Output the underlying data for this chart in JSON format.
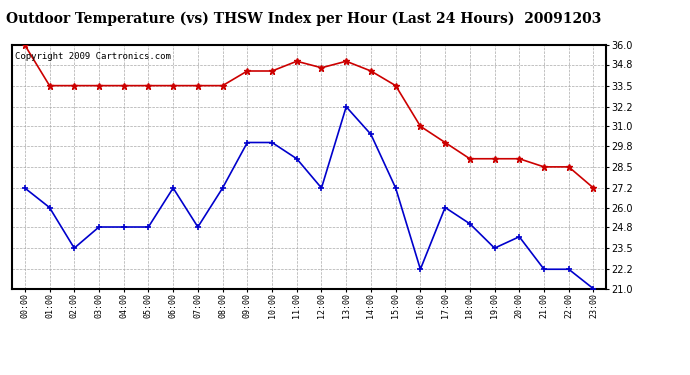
{
  "title": "Outdoor Temperature (vs) THSW Index per Hour (Last 24 Hours)  20091203",
  "copyright": "Copyright 2009 Cartronics.com",
  "hours": [
    "00:00",
    "01:00",
    "02:00",
    "03:00",
    "04:00",
    "05:00",
    "06:00",
    "07:00",
    "08:00",
    "09:00",
    "10:00",
    "11:00",
    "12:00",
    "13:00",
    "14:00",
    "15:00",
    "16:00",
    "17:00",
    "18:00",
    "19:00",
    "20:00",
    "21:00",
    "22:00",
    "23:00"
  ],
  "red_data": [
    36.0,
    33.5,
    33.5,
    33.5,
    33.5,
    33.5,
    33.5,
    33.5,
    33.5,
    34.4,
    34.4,
    35.0,
    34.6,
    35.0,
    34.4,
    33.5,
    31.0,
    30.0,
    29.0,
    29.0,
    29.0,
    28.5,
    28.5,
    27.2
  ],
  "blue_data": [
    27.2,
    26.0,
    23.5,
    24.8,
    24.8,
    24.8,
    27.2,
    24.8,
    27.2,
    30.0,
    30.0,
    29.0,
    27.2,
    32.2,
    30.5,
    27.2,
    22.2,
    26.0,
    25.0,
    23.5,
    24.2,
    22.2,
    22.2,
    21.0
  ],
  "ylim": [
    21.0,
    36.0
  ],
  "yticks": [
    21.0,
    22.2,
    23.5,
    24.8,
    26.0,
    27.2,
    28.5,
    29.8,
    31.0,
    32.2,
    33.5,
    34.8,
    36.0
  ],
  "red_color": "#cc0000",
  "blue_color": "#0000cc",
  "background_color": "#ffffff",
  "grid_color": "#aaaaaa",
  "title_fontsize": 10,
  "copyright_fontsize": 6.5,
  "figwidth": 6.9,
  "figheight": 3.75,
  "dpi": 100
}
